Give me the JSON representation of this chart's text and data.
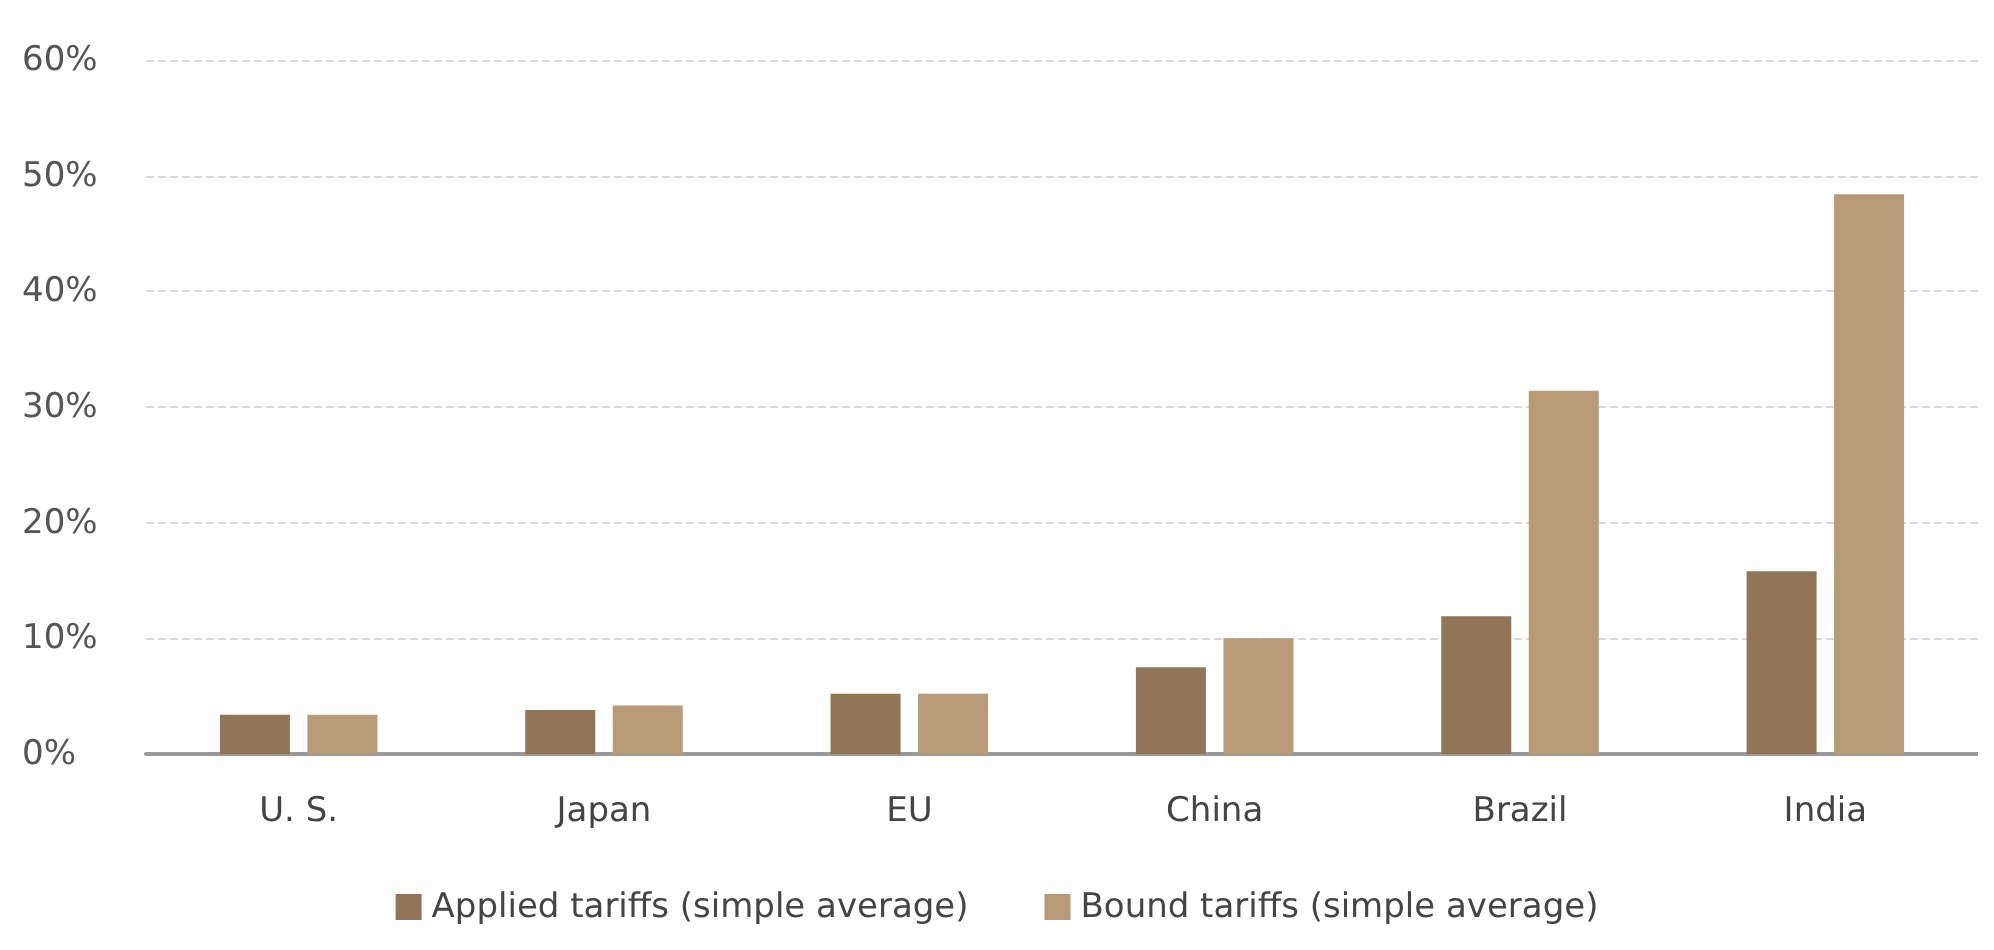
{
  "chart_data": {
    "type": "bar",
    "categories": [
      "U. S.",
      "Japan",
      "EU",
      "China",
      "Brazil",
      "India"
    ],
    "series": [
      {
        "name": "Applied tariffs (simple average)",
        "color": "#927556",
        "values": [
          3.4,
          3.8,
          5.2,
          7.5,
          11.9,
          15.8
        ]
      },
      {
        "name": "Bound tariffs (simple average)",
        "color": "#b89a77",
        "values": [
          3.4,
          4.2,
          5.2,
          10.0,
          31.4,
          48.4
        ]
      }
    ],
    "ylim": [
      0,
      60
    ],
    "yticks": [
      {
        "value": 0,
        "label": "0%"
      },
      {
        "value": 10,
        "label": "10%"
      },
      {
        "value": 20,
        "label": "20%"
      },
      {
        "value": 30,
        "label": "30%"
      },
      {
        "value": 40,
        "label": "40%"
      },
      {
        "value": 50,
        "label": "50%"
      },
      {
        "value": 60,
        "label": "60%"
      }
    ],
    "grid": "y",
    "legend": "bottom"
  }
}
